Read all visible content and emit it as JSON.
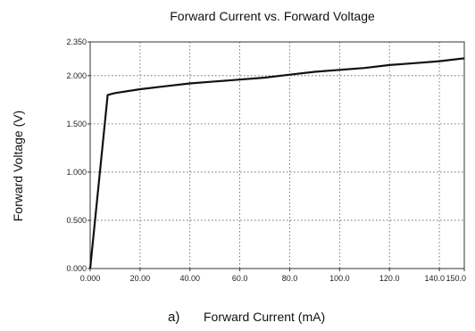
{
  "chart_data": {
    "type": "line",
    "title": "Forward Current vs. Forward Voltage",
    "xlabel": "Forward Current (mA)",
    "ylabel": "Forward Voltage (V)",
    "panel_label": "a)",
    "xlim": [
      0,
      150
    ],
    "ylim": [
      0,
      2.35
    ],
    "x_ticks": [
      0,
      20,
      40,
      60,
      80,
      100,
      120,
      140,
      150
    ],
    "x_tick_labels": [
      "0.000",
      "20.00",
      "40.00",
      "60.0",
      "80.0",
      "100.0",
      "120.0",
      "140.0",
      "150.0"
    ],
    "y_ticks": [
      0,
      0.5,
      1.0,
      1.5,
      2.0,
      2.35
    ],
    "y_tick_labels": [
      "0.000",
      "0.500",
      "1.000",
      "1.500",
      "2.000",
      "2.350"
    ],
    "grid": true,
    "series": [
      {
        "x": [
          0,
          7,
          10,
          20,
          30,
          40,
          50,
          60,
          70,
          80,
          90,
          100,
          110,
          120,
          130,
          140,
          150
        ],
        "y": [
          0.0,
          1.8,
          1.82,
          1.86,
          1.89,
          1.92,
          1.94,
          1.96,
          1.98,
          2.01,
          2.04,
          2.06,
          2.08,
          2.11,
          2.13,
          2.15,
          2.18
        ]
      }
    ],
    "line_color": "#111111"
  }
}
